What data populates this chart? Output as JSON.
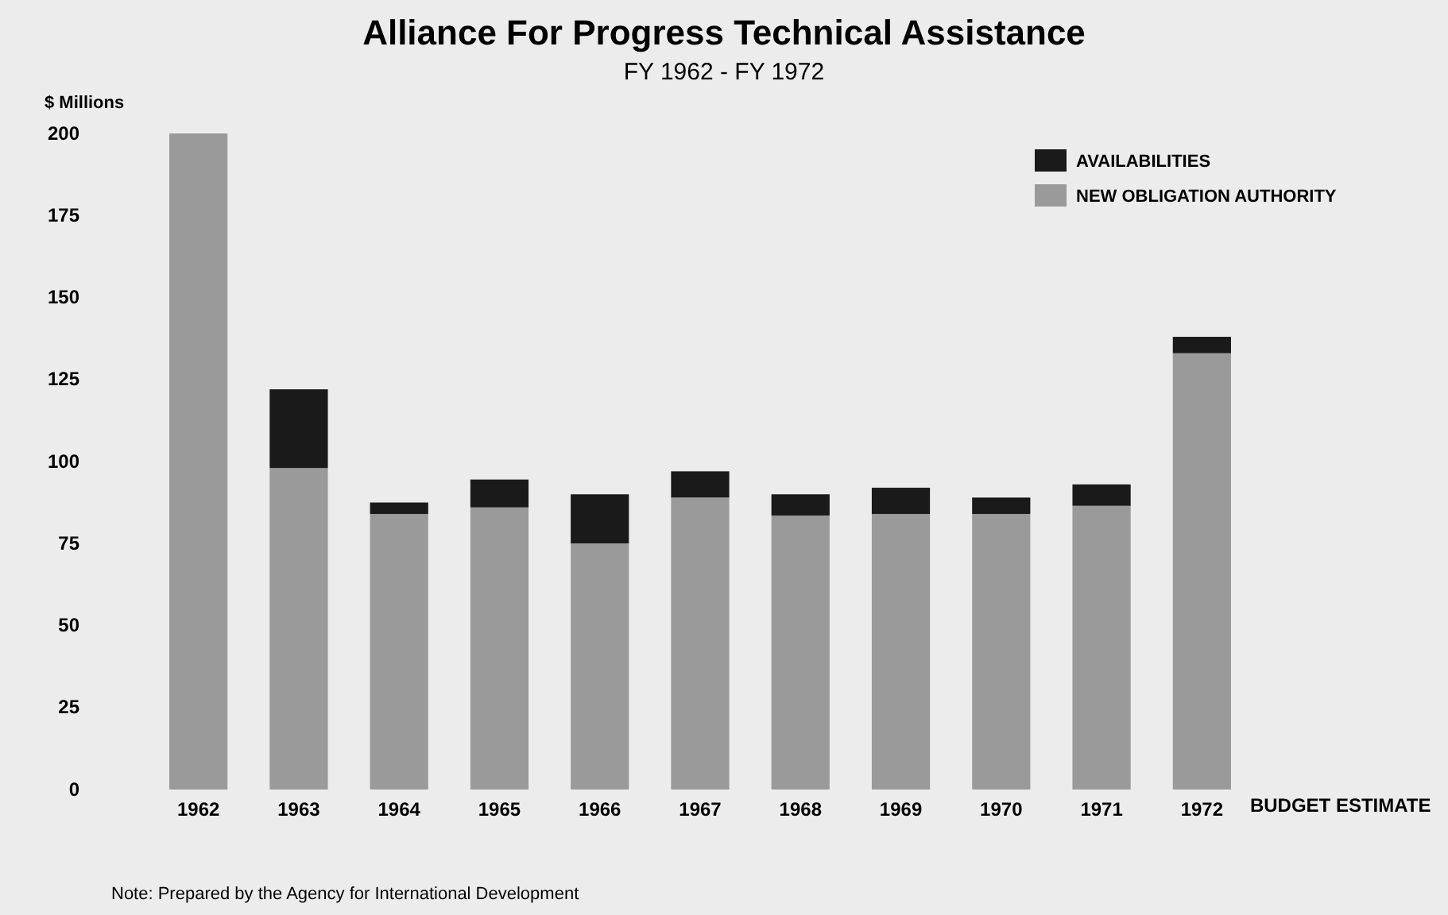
{
  "chart_data": {
    "type": "bar",
    "title": "Alliance For Progress Technical Assistance",
    "subtitle": "FY 1962 - FY 1972",
    "ylabel": "$ Millions",
    "categories": [
      "1962",
      "1963",
      "1964",
      "1965",
      "1966",
      "1967",
      "1968",
      "1969",
      "1970",
      "1971",
      "1972"
    ],
    "stacked": true,
    "series": [
      {
        "name": "NEW OBLIGATION AUTHORITY",
        "color": "#9a9a9a",
        "values": [
          200,
          98,
          84,
          86,
          75,
          89,
          83.5,
          84,
          84,
          86.5,
          133
        ]
      },
      {
        "name": "AVAILABILITIES",
        "color": "#1a1a1a",
        "values": [
          null,
          24,
          3.5,
          8.5,
          15,
          8,
          6.5,
          8,
          5,
          6.5,
          5
        ]
      }
    ],
    "ylim": [
      0,
      200
    ],
    "yticks": [
      0,
      25,
      50,
      75,
      100,
      125,
      150,
      175,
      200
    ],
    "grid": false,
    "legend": "top right",
    "annotations": [
      {
        "text": "BUDGET ESTIMATE",
        "x": "1972",
        "y": 0
      },
      "Note:  Prepared by the Agency for International Development"
    ]
  }
}
